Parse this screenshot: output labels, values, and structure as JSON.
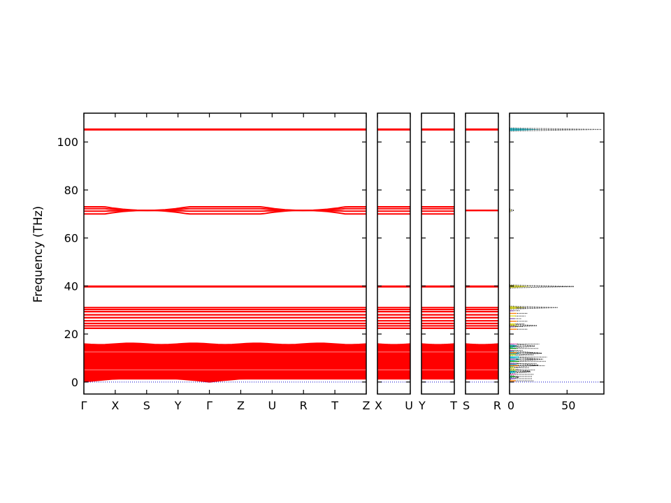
{
  "chart_data": {
    "type": "line",
    "title": "",
    "ylabel": "Frequency (THz)",
    "ylim": [
      -5,
      112
    ],
    "yticks": [
      0,
      20,
      40,
      60,
      80,
      100
    ],
    "colors": {
      "band": "#ff0000",
      "zero_line": "#0000cc",
      "dos_total": "#000000",
      "dos_partials": [
        "#17becf",
        "#dddd22",
        "#ff7f0e",
        "#9467bd",
        "#2ca02c",
        "#e377c2"
      ]
    },
    "band_segments": [
      {
        "labels": [
          "Γ",
          "X",
          "S",
          "Y",
          "Γ",
          "Z",
          "U",
          "R",
          "T",
          "Z"
        ]
      },
      {
        "labels": [
          "X",
          "U"
        ]
      },
      {
        "labels": [
          "Y",
          "T"
        ]
      },
      {
        "labels": [
          "S",
          "R"
        ]
      }
    ],
    "flat_bands_thz": [
      105.2,
      39.8,
      31.0,
      30.2,
      29.3,
      28.0,
      26.8,
      25.5,
      24.4,
      23.4,
      22.4
    ],
    "optical_band_group": {
      "values_thz": [
        73.0,
        72.2,
        71.2,
        70.0
      ],
      "crossings_at": [
        "S",
        "R"
      ]
    },
    "acoustic_region_thz": [
      0,
      16
    ],
    "acoustic_gamma_dip": "Γ",
    "dos_panel": {
      "xticks": [
        0,
        50
      ],
      "xlim": [
        0,
        82
      ],
      "peaks": [
        {
          "freq": 105.2,
          "value": 80
        },
        {
          "freq": 71.5,
          "value": 4
        },
        {
          "freq": 39.8,
          "value": 56
        },
        {
          "freq": 31.0,
          "value": 42
        },
        {
          "freq": 23.5,
          "value": 24
        },
        {
          "freq": 15.0,
          "value": 22
        },
        {
          "freq": 12.0,
          "value": 28
        },
        {
          "freq": 9.5,
          "value": 29
        },
        {
          "freq": 7.0,
          "value": 25
        },
        {
          "freq": 4.5,
          "value": 18
        },
        {
          "freq": 2.0,
          "value": 8
        }
      ]
    }
  }
}
